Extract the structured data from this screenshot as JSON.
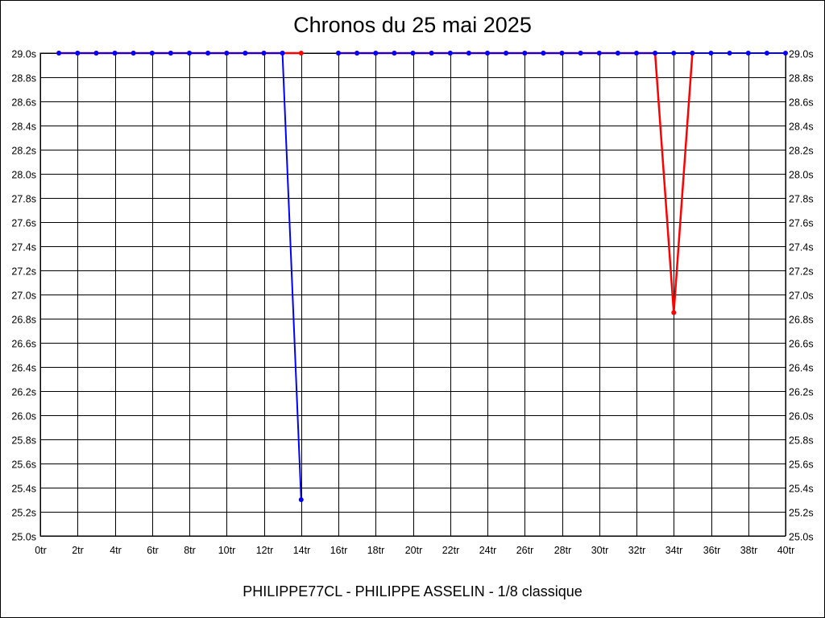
{
  "page": {
    "title": "Chronos du 25 mai 2025",
    "footer": "PHILIPPE77CL - PHILIPPE ASSELIN - 1/8 classique"
  },
  "chart_data": {
    "type": "line",
    "title": "Chronos du 25 mai 2025",
    "xlabel": "",
    "ylabel": "",
    "xlim": [
      0,
      40
    ],
    "ylim": [
      25.0,
      29.0
    ],
    "grid": true,
    "x_tick_labels": [
      "0tr",
      "2tr",
      "4tr",
      "6tr",
      "8tr",
      "10tr",
      "12tr",
      "14tr",
      "16tr",
      "18tr",
      "20tr",
      "22tr",
      "24tr",
      "26tr",
      "28tr",
      "30tr",
      "32tr",
      "34tr",
      "36tr",
      "38tr",
      "40tr"
    ],
    "y_tick_labels": [
      "25.0s",
      "25.2s",
      "25.4s",
      "25.6s",
      "25.8s",
      "26.0s",
      "26.2s",
      "26.4s",
      "26.6s",
      "26.8s",
      "27.0s",
      "27.2s",
      "27.4s",
      "27.6s",
      "27.8s",
      "28.0s",
      "28.2s",
      "28.4s",
      "28.6s",
      "28.8s",
      "29.0s"
    ],
    "colors": {
      "blue": "#0000ff",
      "red": "#ff0000",
      "grid": "#000000"
    },
    "series": [
      {
        "color": "#0000ff",
        "segments": [
          [
            [
              1,
              29.0
            ],
            [
              2,
              29.0
            ],
            [
              3,
              29.0
            ],
            [
              4,
              29.0
            ],
            [
              5,
              29.0
            ],
            [
              6,
              29.0
            ],
            [
              7,
              29.0
            ],
            [
              8,
              29.0
            ],
            [
              9,
              29.0
            ],
            [
              10,
              29.0
            ],
            [
              11,
              29.0
            ],
            [
              12,
              29.0
            ],
            [
              13,
              29.0
            ],
            [
              14,
              25.3
            ]
          ],
          [
            [
              16,
              29.0
            ],
            [
              17,
              29.0
            ],
            [
              18,
              29.0
            ],
            [
              19,
              29.0
            ],
            [
              20,
              29.0
            ],
            [
              21,
              29.0
            ],
            [
              22,
              29.0
            ],
            [
              23,
              29.0
            ],
            [
              24,
              29.0
            ],
            [
              25,
              29.0
            ],
            [
              26,
              29.0
            ],
            [
              27,
              29.0
            ],
            [
              28,
              29.0
            ],
            [
              29,
              29.0
            ],
            [
              30,
              29.0
            ],
            [
              31,
              29.0
            ],
            [
              32,
              29.0
            ],
            [
              33,
              29.0
            ],
            [
              34,
              29.0
            ],
            [
              35,
              29.0
            ],
            [
              36,
              29.0
            ],
            [
              37,
              29.0
            ],
            [
              38,
              29.0
            ],
            [
              39,
              29.0
            ],
            [
              40,
              29.0
            ]
          ]
        ]
      },
      {
        "color": "#ff0000",
        "segments": [
          [
            [
              1,
              29.0
            ],
            [
              2,
              29.0
            ],
            [
              3,
              29.0
            ],
            [
              4,
              29.0
            ],
            [
              5,
              29.0
            ],
            [
              6,
              29.0
            ],
            [
              7,
              29.0
            ],
            [
              8,
              29.0
            ],
            [
              9,
              29.0
            ],
            [
              10,
              29.0
            ],
            [
              11,
              29.0
            ],
            [
              12,
              29.0
            ],
            [
              13,
              29.0
            ],
            [
              14,
              29.0
            ]
          ],
          [
            [
              16,
              29.0
            ],
            [
              17,
              29.0
            ],
            [
              18,
              29.0
            ],
            [
              19,
              29.0
            ],
            [
              20,
              29.0
            ],
            [
              21,
              29.0
            ],
            [
              22,
              29.0
            ],
            [
              23,
              29.0
            ],
            [
              24,
              29.0
            ],
            [
              25,
              29.0
            ],
            [
              26,
              29.0
            ],
            [
              27,
              29.0
            ],
            [
              28,
              29.0
            ],
            [
              29,
              29.0
            ],
            [
              30,
              29.0
            ],
            [
              31,
              29.0
            ],
            [
              32,
              29.0
            ],
            [
              33,
              29.0
            ],
            [
              34,
              26.85
            ],
            [
              35,
              29.0
            ]
          ]
        ]
      }
    ]
  }
}
